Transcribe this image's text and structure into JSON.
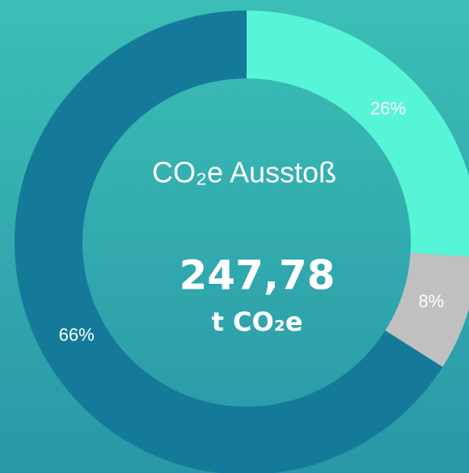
{
  "chart_data": {
    "type": "pie",
    "title": "CO₂e Ausstoß",
    "center_value": "247,78",
    "center_unit": "t CO₂e",
    "values": [
      26,
      8,
      66
    ],
    "value_labels": [
      "26%",
      "8%",
      "66%"
    ],
    "colors": [
      "#57f5d8",
      "#c0c0c0",
      "#157a99"
    ],
    "donut": true
  }
}
